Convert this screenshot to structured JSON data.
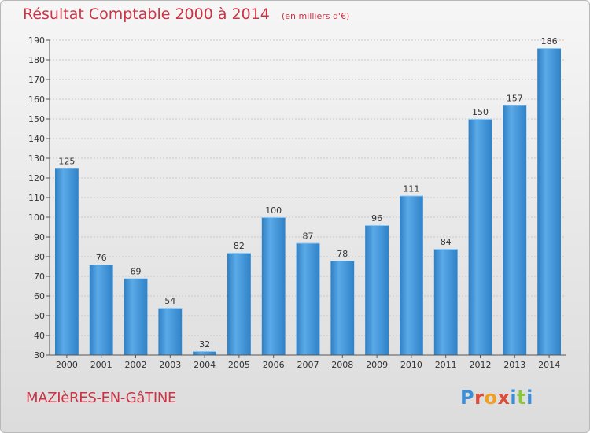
{
  "header": {
    "title": "Résultat Comptable 2000 à 2014",
    "subtitle": "(en milliers d'€)"
  },
  "footer": {
    "place": "MAZIèRES-EN-GâTINE",
    "brand": "Proxiti",
    "brand_colors": [
      "#3a8fd8",
      "#e04b3a",
      "#f0a020",
      "#e04b3a",
      "#3a8fd8",
      "#8cc63f",
      "#3a8fd8"
    ]
  },
  "chart_data": {
    "type": "bar",
    "title": "Résultat Comptable 2000 à 2014",
    "subtitle": "(en milliers d'€)",
    "categories": [
      "2000",
      "2001",
      "2002",
      "2003",
      "2004",
      "2005",
      "2006",
      "2007",
      "2008",
      "2009",
      "2010",
      "2011",
      "2012",
      "2013",
      "2014"
    ],
    "values": [
      125,
      76,
      69,
      54,
      32,
      82,
      100,
      87,
      78,
      96,
      111,
      84,
      150,
      157,
      186
    ],
    "ylim": [
      30,
      190
    ],
    "yticks": [
      30,
      40,
      50,
      60,
      70,
      80,
      90,
      100,
      110,
      120,
      130,
      140,
      150,
      160,
      170,
      180,
      190
    ],
    "xlabel": "",
    "ylabel": "",
    "grid": true,
    "bar_color": "#4a9de0"
  }
}
